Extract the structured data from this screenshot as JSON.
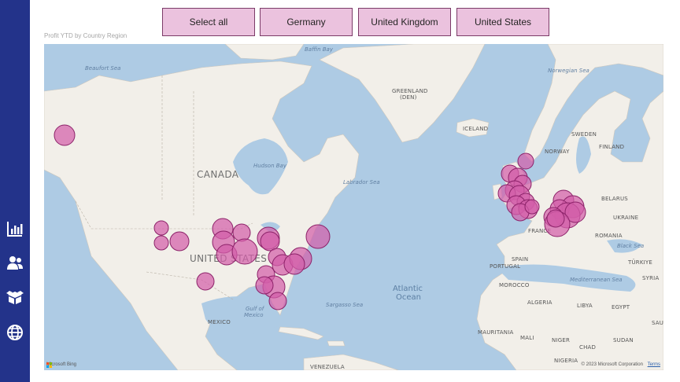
{
  "slicer": {
    "buttons": [
      "Select all",
      "Germany",
      "United Kingdom",
      "United States"
    ]
  },
  "visual": {
    "title": "Profit YTD by Country Region"
  },
  "map": {
    "labels": {
      "beaufort_sea": "Beaufort Sea",
      "baffin_bay": "Baffin Bay",
      "greenland": "GREENLAND",
      "greenland_sub": "(DEN)",
      "norwegian_sea": "Norwegian Sea",
      "canada": "CANADA",
      "hudson_bay": "Hudson Bay",
      "labrador_sea": "Labrador Sea",
      "iceland": "ICELAND",
      "sweden": "SWEDEN",
      "finland": "FINLAND",
      "norway": "NORWAY",
      "belarus": "BELARUS",
      "ukraine": "UKRAINE",
      "france": "FRANCE",
      "romania": "ROMANIA",
      "black_sea": "Black Sea",
      "spain": "SPAIN",
      "portugal": "PORTUGAL",
      "turkiye": "TÜRKIYE",
      "syria": "SYRIA",
      "mediterranean": "Mediterranean Sea",
      "united_states": "UNITED STATES",
      "atlantic_1": "Atlantic",
      "atlantic_2": "Ocean",
      "sargasso": "Sargasso Sea",
      "morocco": "MOROCCO",
      "algeria": "ALGERIA",
      "libya": "LIBYA",
      "egypt": "EGYPT",
      "saudi": "SAU",
      "gulf_1": "Gulf of",
      "gulf_2": "Mexico",
      "mexico": "MEXICO",
      "mali": "MALI",
      "niger": "NIGER",
      "chad": "CHAD",
      "sudan": "SUDAN",
      "mauritania": "MAURITANIA",
      "venezuela": "VENEZUELA",
      "nigeria": "NIGERIA"
    },
    "bing_logo": "Microsoft Bing",
    "copyright": "© 2023 Microsoft Corporation",
    "terms": "Terms",
    "bubble_color": "#d35ea9"
  },
  "sidebar": {
    "icons": [
      "bar-chart-icon",
      "people-icon",
      "box-icon",
      "globe-icon"
    ]
  }
}
